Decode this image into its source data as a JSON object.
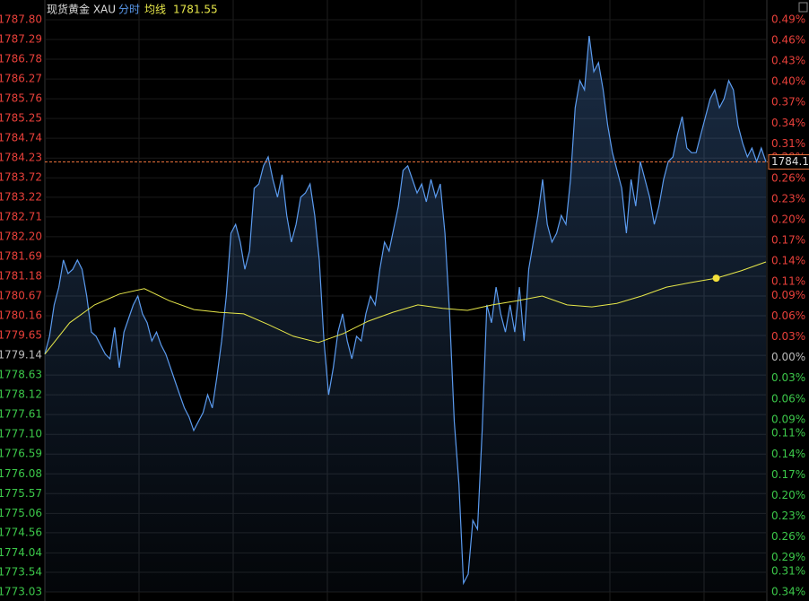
{
  "chart_data": {
    "type": "line",
    "title": "现货黄金 XAU",
    "series": [
      {
        "name": "分时",
        "color": "#5b9bef",
        "values": [
          1779.17,
          1779.63,
          1780.44,
          1780.9,
          1781.6,
          1781.25,
          1781.36,
          1781.6,
          1781.36,
          1780.67,
          1779.74,
          1779.63,
          1779.4,
          1779.17,
          1779.05,
          1779.86,
          1778.82,
          1779.74,
          1780.09,
          1780.44,
          1780.67,
          1780.21,
          1779.98,
          1779.51,
          1779.74,
          1779.4,
          1779.17,
          1778.82,
          1778.47,
          1778.12,
          1777.78,
          1777.55,
          1777.2,
          1777.43,
          1777.66,
          1778.12,
          1777.78,
          1778.59,
          1779.51,
          1780.67,
          1782.29,
          1782.52,
          1782.06,
          1781.36,
          1781.83,
          1783.45,
          1783.56,
          1784.03,
          1784.26,
          1783.68,
          1783.22,
          1783.8,
          1782.75,
          1782.06,
          1782.52,
          1783.22,
          1783.33,
          1783.56,
          1782.75,
          1781.6,
          1779.51,
          1778.12,
          1778.82,
          1779.74,
          1780.21,
          1779.51,
          1779.05,
          1779.63,
          1779.51,
          1780.21,
          1780.67,
          1780.44,
          1781.36,
          1782.06,
          1781.83,
          1782.41,
          1782.99,
          1783.91,
          1784.03,
          1783.68,
          1783.33,
          1783.56,
          1783.1,
          1783.68,
          1783.22,
          1783.56,
          1782.29,
          1780.21,
          1777.43,
          1775.81,
          1773.26,
          1773.49,
          1774.88,
          1774.65,
          1777.2,
          1780.44,
          1779.98,
          1780.9,
          1780.21,
          1779.74,
          1780.44,
          1779.74,
          1780.9,
          1779.51,
          1781.36,
          1782.06,
          1782.75,
          1783.68,
          1782.52,
          1782.06,
          1782.29,
          1782.75,
          1782.52,
          1783.68,
          1785.53,
          1786.23,
          1785.99,
          1787.38,
          1786.46,
          1786.69,
          1785.99,
          1785.07,
          1784.37,
          1783.91,
          1783.45,
          1782.29,
          1783.68,
          1782.99,
          1784.14,
          1783.68,
          1783.22,
          1782.52,
          1782.99,
          1783.68,
          1784.14,
          1784.26,
          1784.84,
          1785.3,
          1784.49,
          1784.37,
          1784.37,
          1784.84,
          1785.3,
          1785.76,
          1785.99,
          1785.53,
          1785.76,
          1786.23,
          1785.99,
          1785.07,
          1784.61,
          1784.26,
          1784.49,
          1784.14,
          1784.49,
          1784.13
        ]
      },
      {
        "name": "均线",
        "color": "#e8e84a",
        "values": [
          1779.17,
          1779.98,
          1780.44,
          1780.72,
          1780.86,
          1780.55,
          1780.32,
          1780.25,
          1780.21,
          1779.93,
          1779.63,
          1779.47,
          1779.7,
          1780.02,
          1780.25,
          1780.44,
          1780.35,
          1780.3,
          1780.44,
          1780.55,
          1780.67,
          1780.44,
          1780.39,
          1780.48,
          1780.67,
          1780.9,
          1781.02,
          1781.13,
          1781.32,
          1781.55
        ]
      }
    ],
    "ylim": [
      1773.03,
      1787.8
    ],
    "yticks": [
      {
        "value": 1787.8,
        "label": "1787.80"
      },
      1787.29,
      1786.78,
      1786.27,
      1785.76,
      1785.25,
      1784.74,
      1784.23,
      1783.72,
      1783.22,
      1782.71,
      {
        "value": 1782.2,
        "label": "1782.20"
      },
      1781.69,
      1781.18,
      1780.67,
      1780.16,
      1779.65,
      1779.14,
      1778.63,
      1778.12,
      1777.61,
      {
        "value": 1777.1,
        "label": "1777.10"
      },
      1776.59,
      1776.08,
      1775.57,
      1775.06,
      1774.56,
      1774.04,
      1773.54,
      1773.03
    ],
    "y2lim": [
      -0.34,
      0.49
    ],
    "y2ticks": [
      {
        "value": 0.49,
        "label": "0.49%"
      },
      {
        "value": 0.46,
        "label": "0.46%"
      },
      {
        "value": 0.43,
        "label": "0.43%"
      },
      {
        "value": 0.4,
        "label": "0.40%"
      },
      {
        "value": 0.37,
        "label": "0.37%"
      },
      {
        "value": 0.34,
        "label": "0.34%"
      },
      {
        "value": 0.31,
        "label": "0.31%"
      },
      {
        "value": 0.29,
        "label": "0.29%"
      },
      {
        "value": 0.26,
        "label": "0.26%"
      },
      {
        "value": 0.23,
        "label": "0.23%"
      },
      {
        "value": 0.2,
        "label": "0.20%"
      },
      {
        "value": 0.17,
        "label": "0.17%"
      },
      {
        "value": 0.14,
        "label": "0.14%"
      },
      {
        "value": 0.11,
        "label": "0.11%"
      },
      {
        "value": 0.09,
        "label": "0.09%"
      },
      {
        "value": 0.06,
        "label": "0.06%"
      },
      {
        "value": 0.03,
        "label": "0.03%"
      },
      {
        "value": 0,
        "label": "0.00%"
      },
      {
        "value": -0.03,
        "label": "0.03%"
      },
      {
        "value": -0.06,
        "label": "0.06%"
      },
      {
        "value": -0.09,
        "label": "0.09%"
      },
      {
        "value": -0.11,
        "label": "0.11%"
      },
      {
        "value": -0.14,
        "label": "0.14%"
      },
      {
        "value": -0.17,
        "label": "0.17%"
      },
      {
        "value": -0.2,
        "label": "0.20%"
      },
      {
        "value": -0.23,
        "label": "0.23%"
      },
      {
        "value": -0.26,
        "label": "0.26%"
      },
      {
        "value": -0.29,
        "label": "0.29%"
      },
      {
        "value": -0.31,
        "label": "0.31%"
      },
      {
        "value": -0.34,
        "label": "0.34%"
      }
    ],
    "grid": true
  }
}
